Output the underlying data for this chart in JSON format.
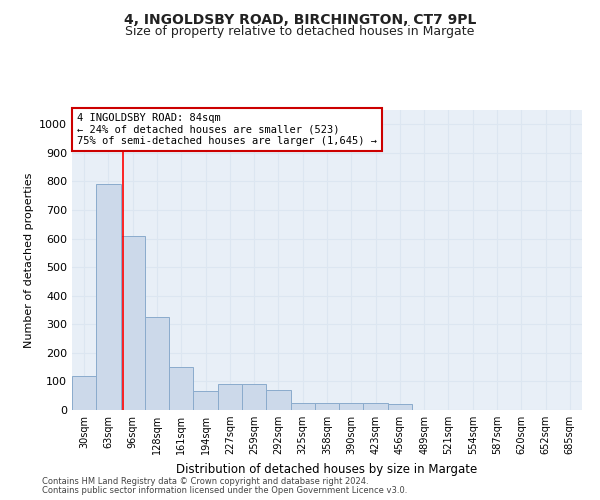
{
  "title1": "4, INGOLDSBY ROAD, BIRCHINGTON, CT7 9PL",
  "title2": "Size of property relative to detached houses in Margate",
  "xlabel": "Distribution of detached houses by size in Margate",
  "ylabel": "Number of detached properties",
  "categories": [
    "30sqm",
    "63sqm",
    "96sqm",
    "128sqm",
    "161sqm",
    "194sqm",
    "227sqm",
    "259sqm",
    "292sqm",
    "325sqm",
    "358sqm",
    "390sqm",
    "423sqm",
    "456sqm",
    "489sqm",
    "521sqm",
    "554sqm",
    "587sqm",
    "620sqm",
    "652sqm",
    "685sqm"
  ],
  "values": [
    120,
    790,
    610,
    325,
    150,
    65,
    90,
    90,
    70,
    25,
    25,
    25,
    25,
    20,
    0,
    0,
    0,
    0,
    0,
    0,
    0
  ],
  "bar_color": "#ccd9ea",
  "bar_edge_color": "#8aabcc",
  "red_line_x": 1.6,
  "annotation_text": "4 INGOLDSBY ROAD: 84sqm\n← 24% of detached houses are smaller (523)\n75% of semi-detached houses are larger (1,645) →",
  "annotation_box_facecolor": "#ffffff",
  "annotation_box_edgecolor": "#cc0000",
  "grid_color": "#dce6f1",
  "background_color": "#e8eff7",
  "ylim": [
    0,
    1050
  ],
  "yticks": [
    0,
    100,
    200,
    300,
    400,
    500,
    600,
    700,
    800,
    900,
    1000
  ],
  "footnote1": "Contains HM Land Registry data © Crown copyright and database right 2024.",
  "footnote2": "Contains public sector information licensed under the Open Government Licence v3.0."
}
